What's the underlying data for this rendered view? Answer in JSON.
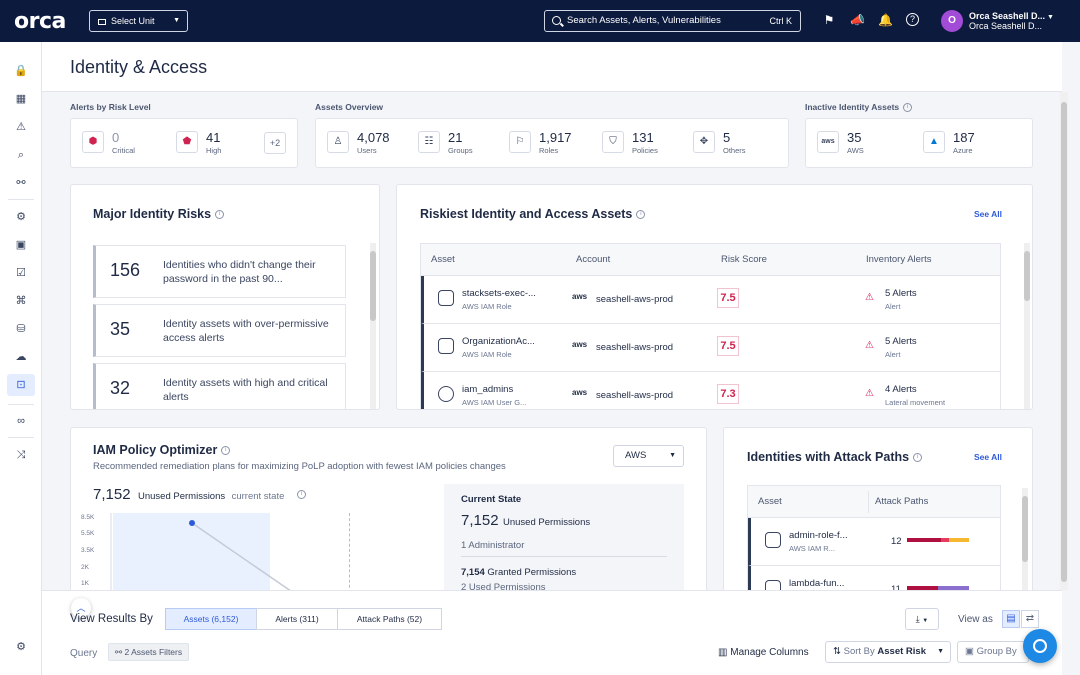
{
  "app": {
    "logo": "orca",
    "unit_select": "Select Unit",
    "search_placeholder": "Search Assets, Alerts, Vulnerabilities",
    "search_shortcut": "Ctrl K",
    "user_initial": "O",
    "user_line1": "Orca Seashell D...",
    "user_line2": "Orca Seashell D..."
  },
  "page": {
    "title": "Identity & Access"
  },
  "alerts_by_risk": {
    "label": "Alerts by Risk Level",
    "critical_count": "0",
    "critical_label": "Critical",
    "high_count": "41",
    "high_label": "High",
    "more": "+2"
  },
  "assets_overview": {
    "label": "Assets Overview",
    "items": [
      {
        "count": "4,078",
        "label": "Users"
      },
      {
        "count": "21",
        "label": "Groups"
      },
      {
        "count": "1,917",
        "label": "Roles"
      },
      {
        "count": "131",
        "label": "Policies"
      },
      {
        "count": "5",
        "label": "Others"
      }
    ]
  },
  "inactive": {
    "label": "Inactive Identity Assets",
    "aws_count": "35",
    "aws_label": "AWS",
    "azure_count": "187",
    "azure_label": "Azure",
    "aws_logo": "aws"
  },
  "major_risks": {
    "title": "Major Identity Risks",
    "items": [
      {
        "count": "156",
        "text": "Identities who didn't change their password in the past 90..."
      },
      {
        "count": "35",
        "text": "Identity assets with over-permissive access alerts"
      },
      {
        "count": "32",
        "text": "Identity assets with high and critical alerts"
      }
    ]
  },
  "riskiest": {
    "title": "Riskiest Identity and Access Assets",
    "see_all": "See All",
    "columns": [
      "Asset",
      "Account",
      "Risk Score",
      "Inventory Alerts"
    ],
    "rows": [
      {
        "name": "stacksets-exec-...",
        "type": "AWS IAM Role",
        "provider": "aws",
        "account": "seashell-aws-prod",
        "score": "7.5",
        "alerts": "5 Alerts",
        "alert_sub": "Alert"
      },
      {
        "name": "OrganizationAc...",
        "type": "AWS IAM Role",
        "provider": "aws",
        "account": "seashell-aws-prod",
        "score": "7.5",
        "alerts": "5 Alerts",
        "alert_sub": "Alert"
      },
      {
        "name": "iam_admins",
        "type": "AWS IAM User G...",
        "provider": "aws",
        "account": "seashell-aws-prod",
        "score": "7.3",
        "alerts": "4 Alerts",
        "alert_sub": "Lateral movement"
      }
    ]
  },
  "iam_optimizer": {
    "title": "IAM Policy Optimizer",
    "subtitle": "Recommended remediation plans for maximizing PoLP adoption with fewest IAM policies changes",
    "provider_select": "AWS",
    "unused_count": "7,152",
    "unused_label": "Unused Permissions",
    "current_state_label": "current state",
    "y_ticks": [
      "8.5K",
      "5.5K",
      "3.5K",
      "2K",
      "1K"
    ],
    "current_state": {
      "title": "Current State",
      "unused_count": "7,152",
      "unused_label": "Unused Permissions",
      "admins": "1 Administrator",
      "granted_count": "7,154",
      "granted_label": "Granted Permissions",
      "used_partial": "2 Used Permissions"
    }
  },
  "attack_paths": {
    "title": "Identities with Attack Paths",
    "see_all": "See All",
    "columns": [
      "Asset",
      "Attack Paths"
    ],
    "rows": [
      {
        "name": "admin-role-f...",
        "type": "AWS IAM R...",
        "count": "12"
      },
      {
        "name": "lambda-fun...",
        "type": "",
        "count": "11"
      }
    ]
  },
  "results": {
    "label": "View Results By",
    "tabs": [
      "Assets (6,152)",
      "Alerts (311)",
      "Attack Paths (52)"
    ],
    "view_as": "View as",
    "query_label": "Query",
    "filter_chip": "2 Assets Filters",
    "manage_columns": "Manage Columns",
    "sort_label": "Sort By",
    "sort_value": "Asset Risk",
    "group_by": "Group By"
  },
  "colors": {
    "navy": "#0c1a3d",
    "accent": "#2d5bd8",
    "critical": "#d0234f",
    "avatar": "#a24bd6"
  }
}
